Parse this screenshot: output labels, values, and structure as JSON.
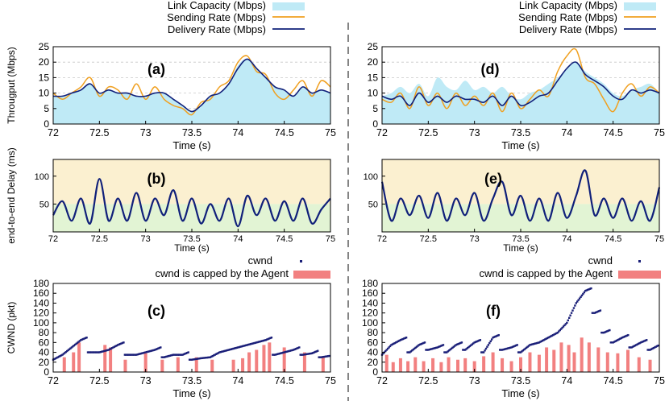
{
  "figure": {
    "legend_top": {
      "link_capacity": "Link Capacity (Mbps)",
      "sending_rate": "Sending Rate (Mbps)",
      "delivery_rate": "Delivery Rate (Mbps)"
    },
    "legend_cwnd": {
      "cwnd": "cwnd",
      "capped": "cwnd is capped by the Agent"
    },
    "colors": {
      "capacity": "#bfeaf6",
      "sending": "#f0a020",
      "delivery": "#10207a",
      "delay_high": "#fbf0d0",
      "delay_low": "#e2f4d4",
      "cwnd": "#1a1f78",
      "capped": "#f28080",
      "grid": "#c8c8c8",
      "divider": "#333333"
    }
  },
  "chart_data": [
    {
      "id": "a",
      "panel_label": "(a)",
      "type": "area",
      "xlabel": "Time (s)",
      "ylabel": "Througput (Mbps)",
      "xlim": [
        72,
        75
      ],
      "ylim": [
        0,
        25
      ],
      "xticks": [
        "72",
        "72.5",
        "73",
        "73.5",
        "74",
        "74.5",
        "75"
      ],
      "yticks": [
        "0",
        "5",
        "10",
        "15",
        "20",
        "25"
      ],
      "x": [
        72.0,
        72.1,
        72.2,
        72.3,
        72.4,
        72.5,
        72.6,
        72.7,
        72.8,
        72.9,
        73.0,
        73.1,
        73.2,
        73.3,
        73.4,
        73.5,
        73.6,
        73.7,
        73.8,
        73.9,
        74.0,
        74.1,
        74.2,
        74.3,
        74.4,
        74.5,
        74.6,
        74.7,
        74.8,
        74.9,
        75.0
      ],
      "series": [
        {
          "name": "Link Capacity (Mbps)",
          "values": [
            9,
            9,
            10,
            11,
            13,
            10,
            11,
            10,
            10,
            9,
            9,
            10,
            10,
            8,
            6,
            4,
            6,
            9,
            10,
            13,
            19,
            21,
            18,
            15,
            12,
            11,
            9,
            12,
            10,
            11,
            10
          ]
        },
        {
          "name": "Sending Rate (Mbps)",
          "values": [
            10,
            8,
            10,
            12,
            15,
            9,
            12,
            11,
            8,
            13,
            8,
            12,
            8,
            6,
            5,
            3,
            7,
            8,
            12,
            14,
            20,
            22,
            17,
            16,
            10,
            8,
            11,
            14,
            9,
            14,
            12
          ]
        },
        {
          "name": "Delivery Rate (Mbps)",
          "values": [
            9,
            9,
            10,
            11,
            13,
            10,
            11,
            10,
            10,
            9,
            9,
            10,
            10,
            8,
            6,
            4,
            6,
            9,
            10,
            13,
            18,
            21,
            18,
            15,
            12,
            11,
            9,
            12,
            10,
            11,
            10
          ]
        }
      ]
    },
    {
      "id": "d",
      "panel_label": "(d)",
      "type": "area",
      "xlabel": "Time (s)",
      "ylabel": "",
      "xlim": [
        72,
        75
      ],
      "ylim": [
        0,
        25
      ],
      "xticks": [
        "72",
        "72.5",
        "73",
        "73.5",
        "74",
        "74.5",
        "75"
      ],
      "yticks": [
        "0",
        "5",
        "10",
        "15",
        "20",
        "25"
      ],
      "x": [
        72.0,
        72.1,
        72.2,
        72.3,
        72.4,
        72.5,
        72.6,
        72.7,
        72.8,
        72.9,
        73.0,
        73.1,
        73.2,
        73.3,
        73.4,
        73.5,
        73.6,
        73.7,
        73.8,
        73.9,
        74.0,
        74.1,
        74.2,
        74.3,
        74.4,
        74.5,
        74.6,
        74.7,
        74.8,
        74.9,
        75.0
      ],
      "series": [
        {
          "name": "Link Capacity (Mbps)",
          "values": [
            9,
            10,
            12,
            10,
            13,
            9,
            15,
            12,
            11,
            14,
            11,
            12,
            10,
            12,
            9,
            8,
            10,
            11,
            13,
            15,
            18,
            20,
            17,
            15,
            13,
            10,
            9,
            11,
            12,
            13,
            10
          ]
        },
        {
          "name": "Sending Rate (Mbps)",
          "values": [
            8,
            7,
            10,
            5,
            12,
            6,
            10,
            5,
            10,
            6,
            9,
            6,
            10,
            4,
            10,
            5,
            8,
            11,
            9,
            17,
            22,
            24,
            15,
            13,
            8,
            4,
            10,
            13,
            9,
            12,
            10
          ]
        },
        {
          "name": "Delivery Rate (Mbps)",
          "values": [
            9,
            8,
            9,
            6,
            10,
            7,
            9,
            7,
            9,
            8,
            8,
            7,
            9,
            6,
            9,
            6,
            7,
            9,
            10,
            14,
            18,
            20,
            16,
            14,
            12,
            9,
            8,
            11,
            10,
            11,
            10
          ]
        }
      ]
    },
    {
      "id": "b",
      "panel_label": "(b)",
      "type": "line",
      "xlabel": "Time (s)",
      "ylabel": "end-to-end Delay (ms)",
      "xlim": [
        72,
        75
      ],
      "ylim": [
        0,
        130
      ],
      "xticks": [
        "72",
        "72.5",
        "73",
        "73.5",
        "74",
        "74.5",
        "75"
      ],
      "yticks": [
        "50",
        "100"
      ],
      "band_split_ms": 50,
      "x": [
        72.0,
        72.1,
        72.2,
        72.3,
        72.4,
        72.5,
        72.6,
        72.7,
        72.8,
        72.9,
        73.0,
        73.1,
        73.2,
        73.3,
        73.4,
        73.5,
        73.6,
        73.7,
        73.8,
        73.9,
        74.0,
        74.1,
        74.2,
        74.3,
        74.4,
        74.5,
        74.6,
        74.7,
        74.8,
        74.9,
        75.0
      ],
      "series": [
        {
          "name": "Delay (ms)",
          "values": [
            30,
            55,
            20,
            60,
            15,
            95,
            20,
            60,
            20,
            70,
            20,
            60,
            30,
            75,
            20,
            60,
            15,
            50,
            20,
            60,
            10,
            65,
            30,
            60,
            20,
            55,
            20,
            60,
            15,
            40,
            60
          ]
        }
      ]
    },
    {
      "id": "e",
      "panel_label": "(e)",
      "type": "line",
      "xlabel": "Time (s)",
      "ylabel": "",
      "xlim": [
        72,
        75
      ],
      "ylim": [
        0,
        130
      ],
      "xticks": [
        "72",
        "72.5",
        "73",
        "73.5",
        "74",
        "74.5",
        "75"
      ],
      "yticks": [
        "50",
        "100"
      ],
      "band_split_ms": 50,
      "x": [
        72.0,
        72.1,
        72.2,
        72.3,
        72.4,
        72.5,
        72.6,
        72.7,
        72.8,
        72.9,
        73.0,
        73.1,
        73.2,
        73.3,
        73.4,
        73.5,
        73.6,
        73.7,
        73.8,
        73.9,
        74.0,
        74.1,
        74.2,
        74.3,
        74.4,
        74.5,
        74.6,
        74.7,
        74.8,
        74.9,
        75.0
      ],
      "series": [
        {
          "name": "Delay (ms)",
          "values": [
            90,
            20,
            60,
            30,
            65,
            25,
            70,
            20,
            60,
            30,
            70,
            20,
            60,
            90,
            30,
            65,
            20,
            60,
            20,
            70,
            25,
            65,
            110,
            30,
            60,
            25,
            60,
            20,
            55,
            20,
            80
          ]
        }
      ]
    },
    {
      "id": "c",
      "panel_label": "(c)",
      "type": "scatter",
      "xlabel": "Time (s)",
      "ylabel": "CWND (pkt)",
      "xlim": [
        72,
        75
      ],
      "ylim": [
        0,
        180
      ],
      "xticks": [
        "72",
        "72.5",
        "73",
        "73.5",
        "74",
        "74.5",
        "75"
      ],
      "yticks": [
        "0",
        "20",
        "40",
        "60",
        "80",
        "100",
        "120",
        "140",
        "160",
        "180"
      ],
      "cwnd_x": [
        72.0,
        72.1,
        72.2,
        72.3,
        72.4,
        72.5,
        72.6,
        72.7,
        72.8,
        72.9,
        73.0,
        73.1,
        73.2,
        73.3,
        73.4,
        73.5,
        73.6,
        73.7,
        73.8,
        73.9,
        74.0,
        74.1,
        74.2,
        74.3,
        74.4,
        74.5,
        74.6,
        74.7,
        74.8,
        74.9,
        75.0
      ],
      "cwnd": [
        25,
        35,
        50,
        65,
        40,
        40,
        45,
        55,
        35,
        35,
        40,
        45,
        30,
        35,
        35,
        25,
        28,
        30,
        40,
        45,
        50,
        55,
        60,
        65,
        35,
        40,
        45,
        35,
        38,
        30,
        33
      ],
      "capped_x": [
        72.12,
        72.22,
        72.28,
        72.56,
        72.62,
        72.78,
        73.0,
        73.18,
        73.35,
        73.55,
        73.72,
        73.95,
        74.05,
        74.12,
        74.2,
        74.28,
        74.34,
        74.5,
        74.72,
        74.92
      ],
      "capped": [
        30,
        40,
        60,
        55,
        50,
        25,
        38,
        25,
        30,
        30,
        25,
        25,
        28,
        40,
        45,
        55,
        60,
        50,
        40,
        30
      ]
    },
    {
      "id": "f",
      "panel_label": "(f)",
      "type": "scatter",
      "xlabel": "Time (s)",
      "ylabel": "",
      "xlim": [
        72,
        75
      ],
      "ylim": [
        0,
        180
      ],
      "xticks": [
        "72",
        "72.5",
        "73",
        "73.5",
        "74",
        "74.5",
        "75"
      ],
      "yticks": [
        "0",
        "20",
        "40",
        "60",
        "80",
        "100",
        "120",
        "140",
        "160",
        "180"
      ],
      "cwnd_x": [
        72.0,
        72.1,
        72.2,
        72.3,
        72.4,
        72.5,
        72.6,
        72.7,
        72.8,
        72.9,
        73.0,
        73.1,
        73.2,
        73.3,
        73.4,
        73.5,
        73.6,
        73.7,
        73.8,
        73.9,
        74.0,
        74.1,
        74.2,
        74.3,
        74.4,
        74.5,
        74.6,
        74.7,
        74.8,
        74.9,
        75.0
      ],
      "cwnd": [
        35,
        55,
        65,
        40,
        55,
        45,
        50,
        40,
        55,
        45,
        60,
        40,
        70,
        45,
        50,
        40,
        55,
        60,
        70,
        80,
        100,
        140,
        165,
        120,
        80,
        60,
        70,
        50,
        60,
        45,
        55
      ],
      "capped_x": [
        72.05,
        72.12,
        72.2,
        72.28,
        72.36,
        72.45,
        72.55,
        72.64,
        72.72,
        72.82,
        72.9,
        73.0,
        73.1,
        73.2,
        73.3,
        73.4,
        73.5,
        73.6,
        73.7,
        73.78,
        73.86,
        73.94,
        74.02,
        74.08,
        74.16,
        74.24,
        74.34,
        74.44,
        74.55,
        74.66,
        74.78,
        74.9
      ],
      "capped": [
        35,
        20,
        28,
        22,
        30,
        22,
        28,
        20,
        30,
        25,
        28,
        22,
        32,
        40,
        28,
        22,
        30,
        40,
        35,
        50,
        45,
        60,
        55,
        40,
        70,
        60,
        50,
        40,
        38,
        45,
        30,
        25
      ]
    }
  ]
}
